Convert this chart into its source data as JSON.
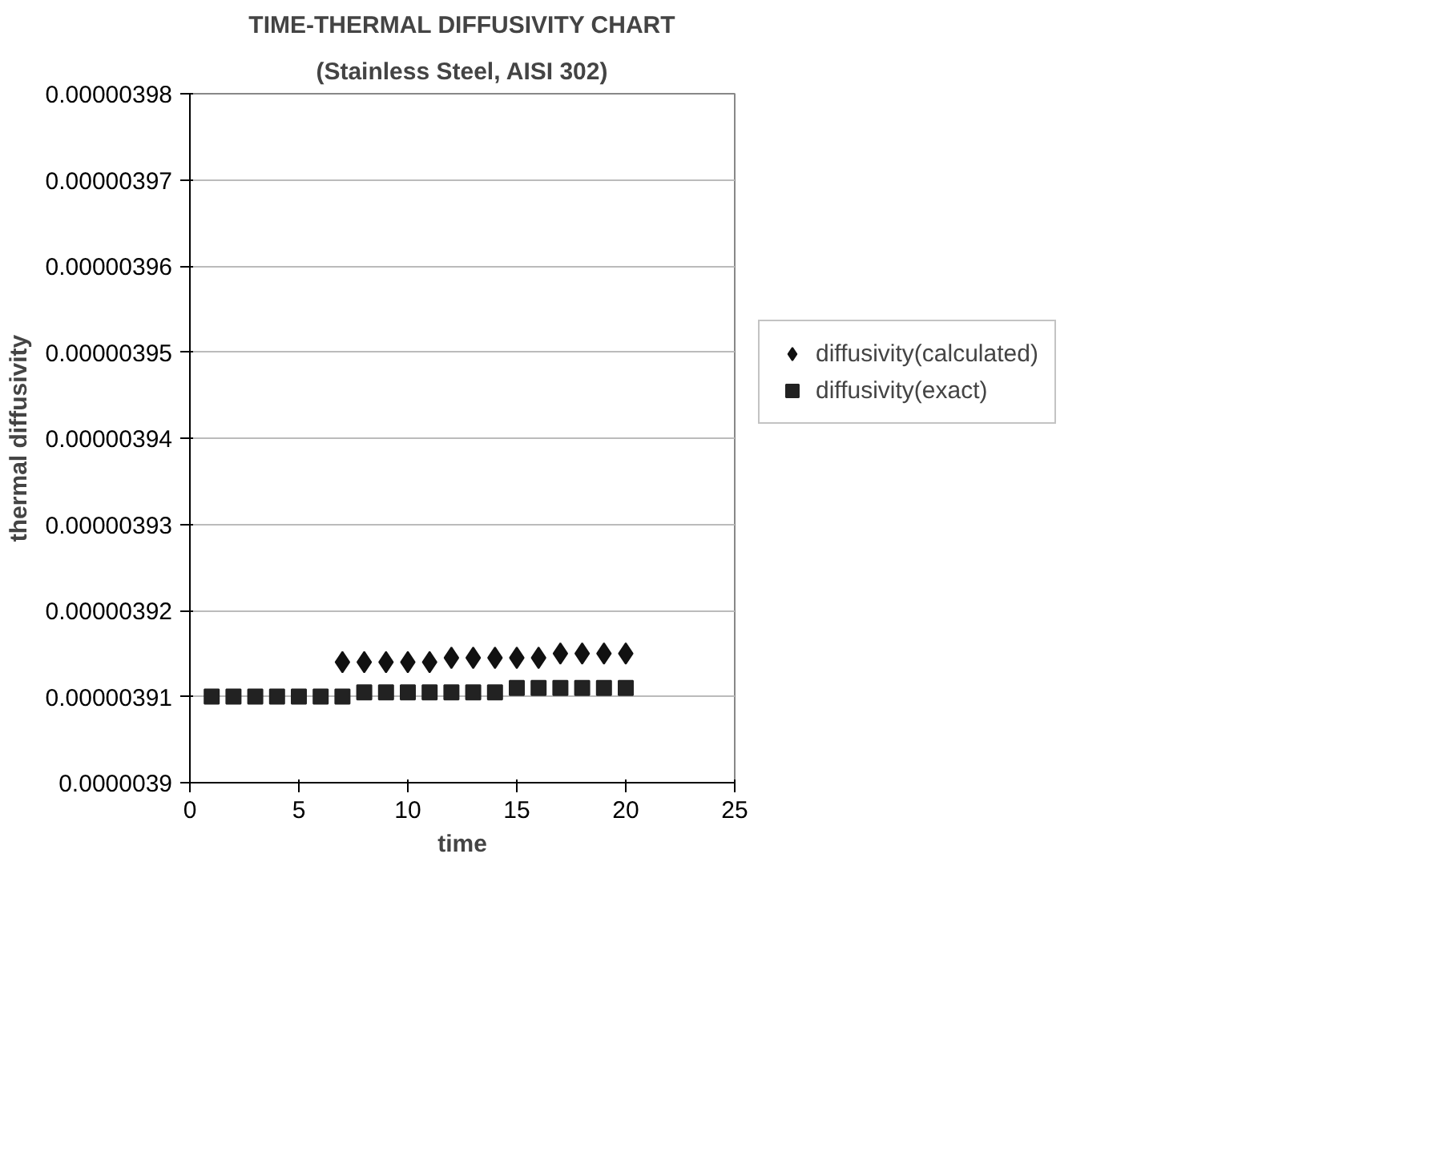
{
  "chart_data": {
    "type": "scatter",
    "title": "TIME-THERMAL DIFFUSIVITY CHART",
    "subtitle": "(Stainless Steel, AISI 302)",
    "xlabel": "time",
    "ylabel": "thermal diffusivity",
    "xlim": [
      0,
      25
    ],
    "xticks": [
      0,
      5,
      10,
      15,
      20,
      25
    ],
    "ylim": [
      3.9e-06,
      3.98e-06
    ],
    "yticks": [
      {
        "value": 3.9e-06,
        "label": "0.0000039"
      },
      {
        "value": 3.91e-06,
        "label": "0.00000391"
      },
      {
        "value": 3.92e-06,
        "label": "0.00000392"
      },
      {
        "value": 3.93e-06,
        "label": "0.00000393"
      },
      {
        "value": 3.94e-06,
        "label": "0.00000394"
      },
      {
        "value": 3.95e-06,
        "label": "0.00000395"
      },
      {
        "value": 3.96e-06,
        "label": "0.00000396"
      },
      {
        "value": 3.97e-06,
        "label": "0.00000397"
      },
      {
        "value": 3.98e-06,
        "label": "0.00000398"
      }
    ],
    "grid": "y",
    "legend": "right",
    "series": [
      {
        "name": "diffusivity(calculated)",
        "color": "#111111",
        "marker": "diamond",
        "x": [
          7,
          8,
          9,
          10,
          11,
          12,
          13,
          14,
          15,
          16,
          17,
          18,
          19,
          20
        ],
        "values": [
          3.914e-06,
          3.914e-06,
          3.914e-06,
          3.914e-06,
          3.914e-06,
          3.9145e-06,
          3.9145e-06,
          3.9145e-06,
          3.9145e-06,
          3.9145e-06,
          3.915e-06,
          3.915e-06,
          3.915e-06,
          3.915e-06
        ]
      },
      {
        "name": "diffusivity(exact)",
        "color": "#222222",
        "marker": "square",
        "x": [
          1,
          2,
          3,
          4,
          5,
          6,
          7,
          8,
          9,
          10,
          11,
          12,
          13,
          14,
          15,
          16,
          17,
          18,
          19,
          20
        ],
        "values": [
          3.91e-06,
          3.91e-06,
          3.91e-06,
          3.91e-06,
          3.91e-06,
          3.91e-06,
          3.91e-06,
          3.9105e-06,
          3.9105e-06,
          3.9105e-06,
          3.9105e-06,
          3.9105e-06,
          3.9105e-06,
          3.9105e-06,
          3.911e-06,
          3.911e-06,
          3.911e-06,
          3.911e-06,
          3.911e-06,
          3.911e-06
        ]
      }
    ]
  }
}
